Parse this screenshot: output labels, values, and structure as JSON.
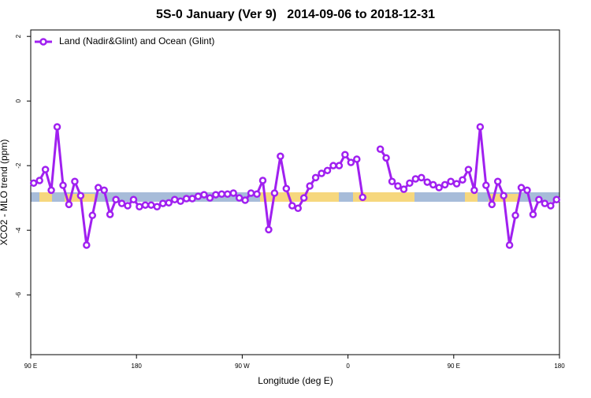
{
  "chart_data": {
    "type": "line",
    "title": "5S-0 January (Ver 9)   2014-09-06 to 2018-12-31",
    "x_label": "Longitude (deg E)",
    "y_label": "XCO2 - MLO trend (ppm)",
    "x": [
      92.5,
      97.5,
      102.5,
      107.5,
      112.5,
      117.5,
      122.5,
      127.5,
      132.5,
      137.5,
      142.5,
      147.5,
      152.5,
      157.5,
      162.5,
      167.5,
      172.5,
      177.5,
      182.5,
      187.5,
      192.5,
      197.5,
      202.5,
      207.5,
      212.5,
      217.5,
      222.5,
      227.5,
      232.5,
      237.5,
      242.5,
      247.5,
      252.5,
      257.5,
      262.5,
      267.5,
      272.5,
      277.5,
      282.5,
      287.5,
      292.5,
      297.5,
      302.5,
      307.5,
      312.5,
      317.5,
      322.5,
      327.5,
      332.5,
      337.5,
      342.5,
      347.5,
      352.5,
      357.5,
      362.5,
      367.5,
      372.5,
      377.5,
      382.5,
      387.5,
      392.5,
      397.5,
      402.5,
      407.5,
      412.5,
      417.5,
      422.5,
      427.5,
      432.5,
      437.5,
      442.5,
      447.5,
      452.5,
      457.5,
      462.5,
      467.5,
      472.5,
      477.5,
      482.5,
      487.5,
      492.5,
      497.5,
      502.5,
      507.5,
      512.5,
      517.5,
      522.5,
      527.5,
      532.5,
      537.5
    ],
    "series": [
      {
        "name": "Land (Nadir&Glint) and Ocean (Glint)",
        "color": "#a020f0",
        "values": [
          -2.54,
          -2.46,
          -2.12,
          -2.76,
          -0.8,
          -2.61,
          -3.2,
          -2.49,
          -2.93,
          -4.46,
          -3.54,
          -2.68,
          -2.76,
          -3.51,
          -3.05,
          -3.17,
          -3.24,
          -3.05,
          -3.27,
          -3.22,
          -3.22,
          -3.27,
          -3.17,
          -3.15,
          -3.05,
          -3.1,
          -3.02,
          -3.02,
          -2.95,
          -2.9,
          -3.0,
          -2.9,
          -2.88,
          -2.88,
          -2.85,
          -3.0,
          -3.07,
          -2.85,
          -2.88,
          -2.46,
          -3.98,
          -2.85,
          -1.71,
          -2.71,
          -3.24,
          -3.32,
          -3.0,
          -2.63,
          -2.37,
          -2.24,
          -2.15,
          -2.0,
          -2.0,
          -1.66,
          -1.9,
          -1.8,
          -2.98,
          null,
          null,
          -1.49,
          -1.76,
          -2.49,
          -2.63,
          -2.73,
          -2.54,
          -2.41,
          -2.37,
          -2.51,
          -2.59,
          -2.68,
          -2.59,
          -2.49,
          -2.56,
          -2.44,
          -2.12,
          -2.76,
          -0.8,
          -2.61,
          -3.2,
          -2.49,
          -2.93,
          -4.46,
          -3.54,
          -2.68,
          -2.76,
          -3.51,
          -3.05,
          -3.17,
          -3.24,
          -3.05
        ]
      }
    ],
    "xlim": [
      90,
      540
    ],
    "xticks": [
      {
        "value": 90,
        "label": "90 E"
      },
      180,
      {
        "value": 270,
        "label": "90 W"
      },
      {
        "value": 360,
        "label": "0"
      },
      {
        "value": 450,
        "label": "90 E"
      },
      {
        "value": 540,
        "label": "180"
      }
    ],
    "ylim": [
      -7.85,
      2.2
    ],
    "yticks": [
      2,
      0,
      -2,
      -4,
      -6
    ],
    "legend": "top-left"
  }
}
